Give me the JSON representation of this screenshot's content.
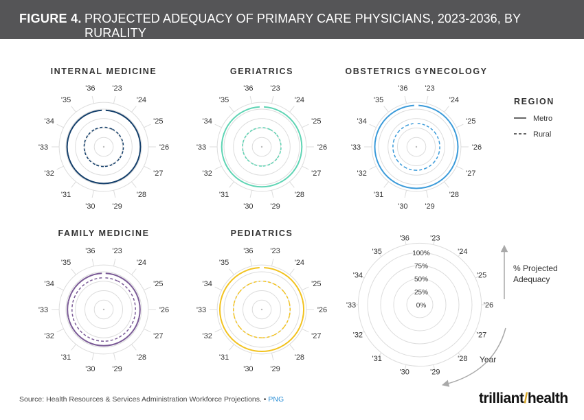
{
  "header": {
    "figure_number": "FIGURE 4.",
    "title": "PROJECTED ADEQUACY OF PRIMARY CARE PHYSICIANS, 2023-2036, BY RURALITY"
  },
  "footer": {
    "source": "Source: Health Resources & Services Administration Workforce Projections.",
    "separator": "•",
    "format": "PNG"
  },
  "logo": {
    "part1": "trilliant",
    "part2": "health"
  },
  "colors": {
    "header_bg": "#555557",
    "grid": "#dcdcdc",
    "text": "#333333",
    "internal_medicine": "#143f6b",
    "geriatrics": "#5fd4b4",
    "obstetrics_gynecology": "#3a9ad9",
    "family_medicine": "#7a5a96",
    "pediatrics": "#f2c21e"
  },
  "chart_data": [
    {
      "type": "radial-bar",
      "title": "INTERNAL MEDICINE",
      "color_key": "internal_medicine",
      "categories": [
        "'23",
        "'24",
        "'25",
        "'26",
        "'27",
        "'28",
        "'29",
        "'30",
        "'31",
        "'32",
        "'33",
        "'34",
        "'35",
        "'36"
      ],
      "rlim": [
        0,
        100
      ],
      "series": [
        {
          "name": "Metro",
          "style": "solid",
          "values": [
            97,
            97,
            97,
            97,
            97,
            97,
            97,
            97,
            97,
            97,
            97,
            97,
            97,
            97
          ]
        },
        {
          "name": "Rural",
          "style": "dashed",
          "values": [
            52,
            52,
            52,
            52,
            52,
            52,
            52,
            52,
            52,
            52,
            52,
            52,
            52,
            52
          ]
        }
      ]
    },
    {
      "type": "radial-bar",
      "title": "GERIATRICS",
      "color_key": "geriatrics",
      "categories": [
        "'23",
        "'24",
        "'25",
        "'26",
        "'27",
        "'28",
        "'29",
        "'30",
        "'31",
        "'32",
        "'33",
        "'34",
        "'35",
        "'36"
      ],
      "rlim": [
        0,
        100
      ],
      "series": [
        {
          "name": "Metro",
          "style": "solid",
          "values": [
            106,
            106,
            106,
            106,
            106,
            106,
            106,
            106,
            106,
            106,
            106,
            106,
            106,
            106
          ]
        },
        {
          "name": "Rural",
          "style": "dashed",
          "values": [
            51,
            51,
            51,
            51,
            51,
            51,
            51,
            51,
            51,
            51,
            51,
            51,
            51,
            51
          ]
        }
      ]
    },
    {
      "type": "radial-bar",
      "title": "OBSTETRICS GYNECOLOGY",
      "color_key": "obstetrics_gynecology",
      "categories": [
        "'23",
        "'24",
        "'25",
        "'26",
        "'27",
        "'28",
        "'29",
        "'30",
        "'31",
        "'32",
        "'33",
        "'34",
        "'35",
        "'36"
      ],
      "rlim": [
        0,
        100
      ],
      "series": [
        {
          "name": "Metro",
          "style": "solid",
          "values": [
            110,
            110,
            110,
            110,
            110,
            110,
            110,
            110,
            110,
            110,
            110,
            110,
            110,
            110
          ]
        },
        {
          "name": "Rural",
          "style": "dashed",
          "values": [
            62,
            62,
            62,
            62,
            62,
            62,
            62,
            62,
            62,
            62,
            62,
            62,
            62,
            62
          ]
        }
      ]
    },
    {
      "type": "radial-bar",
      "title": "FAMILY MEDICINE",
      "color_key": "family_medicine",
      "categories": [
        "'23",
        "'24",
        "'25",
        "'26",
        "'27",
        "'28",
        "'29",
        "'30",
        "'31",
        "'32",
        "'33",
        "'34",
        "'35",
        "'36"
      ],
      "rlim": [
        0,
        100
      ],
      "series": [
        {
          "name": "Metro",
          "style": "solid",
          "values": [
            96,
            96,
            96,
            96,
            96,
            96,
            96,
            96,
            96,
            96,
            96,
            96,
            96,
            96
          ]
        },
        {
          "name": "Rural",
          "style": "dashed",
          "values": [
            84,
            84,
            84,
            84,
            84,
            84,
            84,
            84,
            84,
            84,
            84,
            84,
            84,
            84
          ]
        }
      ]
    },
    {
      "type": "radial-bar",
      "title": "PEDIATRICS",
      "color_key": "pediatrics",
      "categories": [
        "'23",
        "'24",
        "'25",
        "'26",
        "'27",
        "'28",
        "'29",
        "'30",
        "'31",
        "'32",
        "'33",
        "'34",
        "'35",
        "'36"
      ],
      "rlim": [
        0,
        100
      ],
      "series": [
        {
          "name": "Metro",
          "style": "solid",
          "values": [
            111,
            111,
            111,
            111,
            111,
            111,
            111,
            111,
            111,
            111,
            111,
            111,
            111,
            111
          ]
        },
        {
          "name": "Rural",
          "style": "dashed",
          "values": [
            75,
            75,
            75,
            75,
            75,
            75,
            75,
            75,
            75,
            75,
            75,
            75,
            75,
            75
          ]
        }
      ]
    }
  ],
  "legend": {
    "title": "REGION",
    "items": [
      {
        "label": "Metro",
        "style": "solid"
      },
      {
        "label": "Rural",
        "style": "dashed"
      }
    ]
  },
  "guide": {
    "categories": [
      "'23",
      "'24",
      "'25",
      "'26",
      "'27",
      "'28",
      "'29",
      "'30",
      "'31",
      "'32",
      "'33",
      "'34",
      "'35",
      "'36"
    ],
    "ring_labels": [
      "100%",
      "75%",
      "50%",
      "25%",
      "0%"
    ],
    "ring_values": [
      100,
      75,
      50,
      25,
      0
    ],
    "radial_axis_label_line1": "% Projected",
    "radial_axis_label_line2": "Adequacy",
    "angular_axis_label": "Year"
  }
}
